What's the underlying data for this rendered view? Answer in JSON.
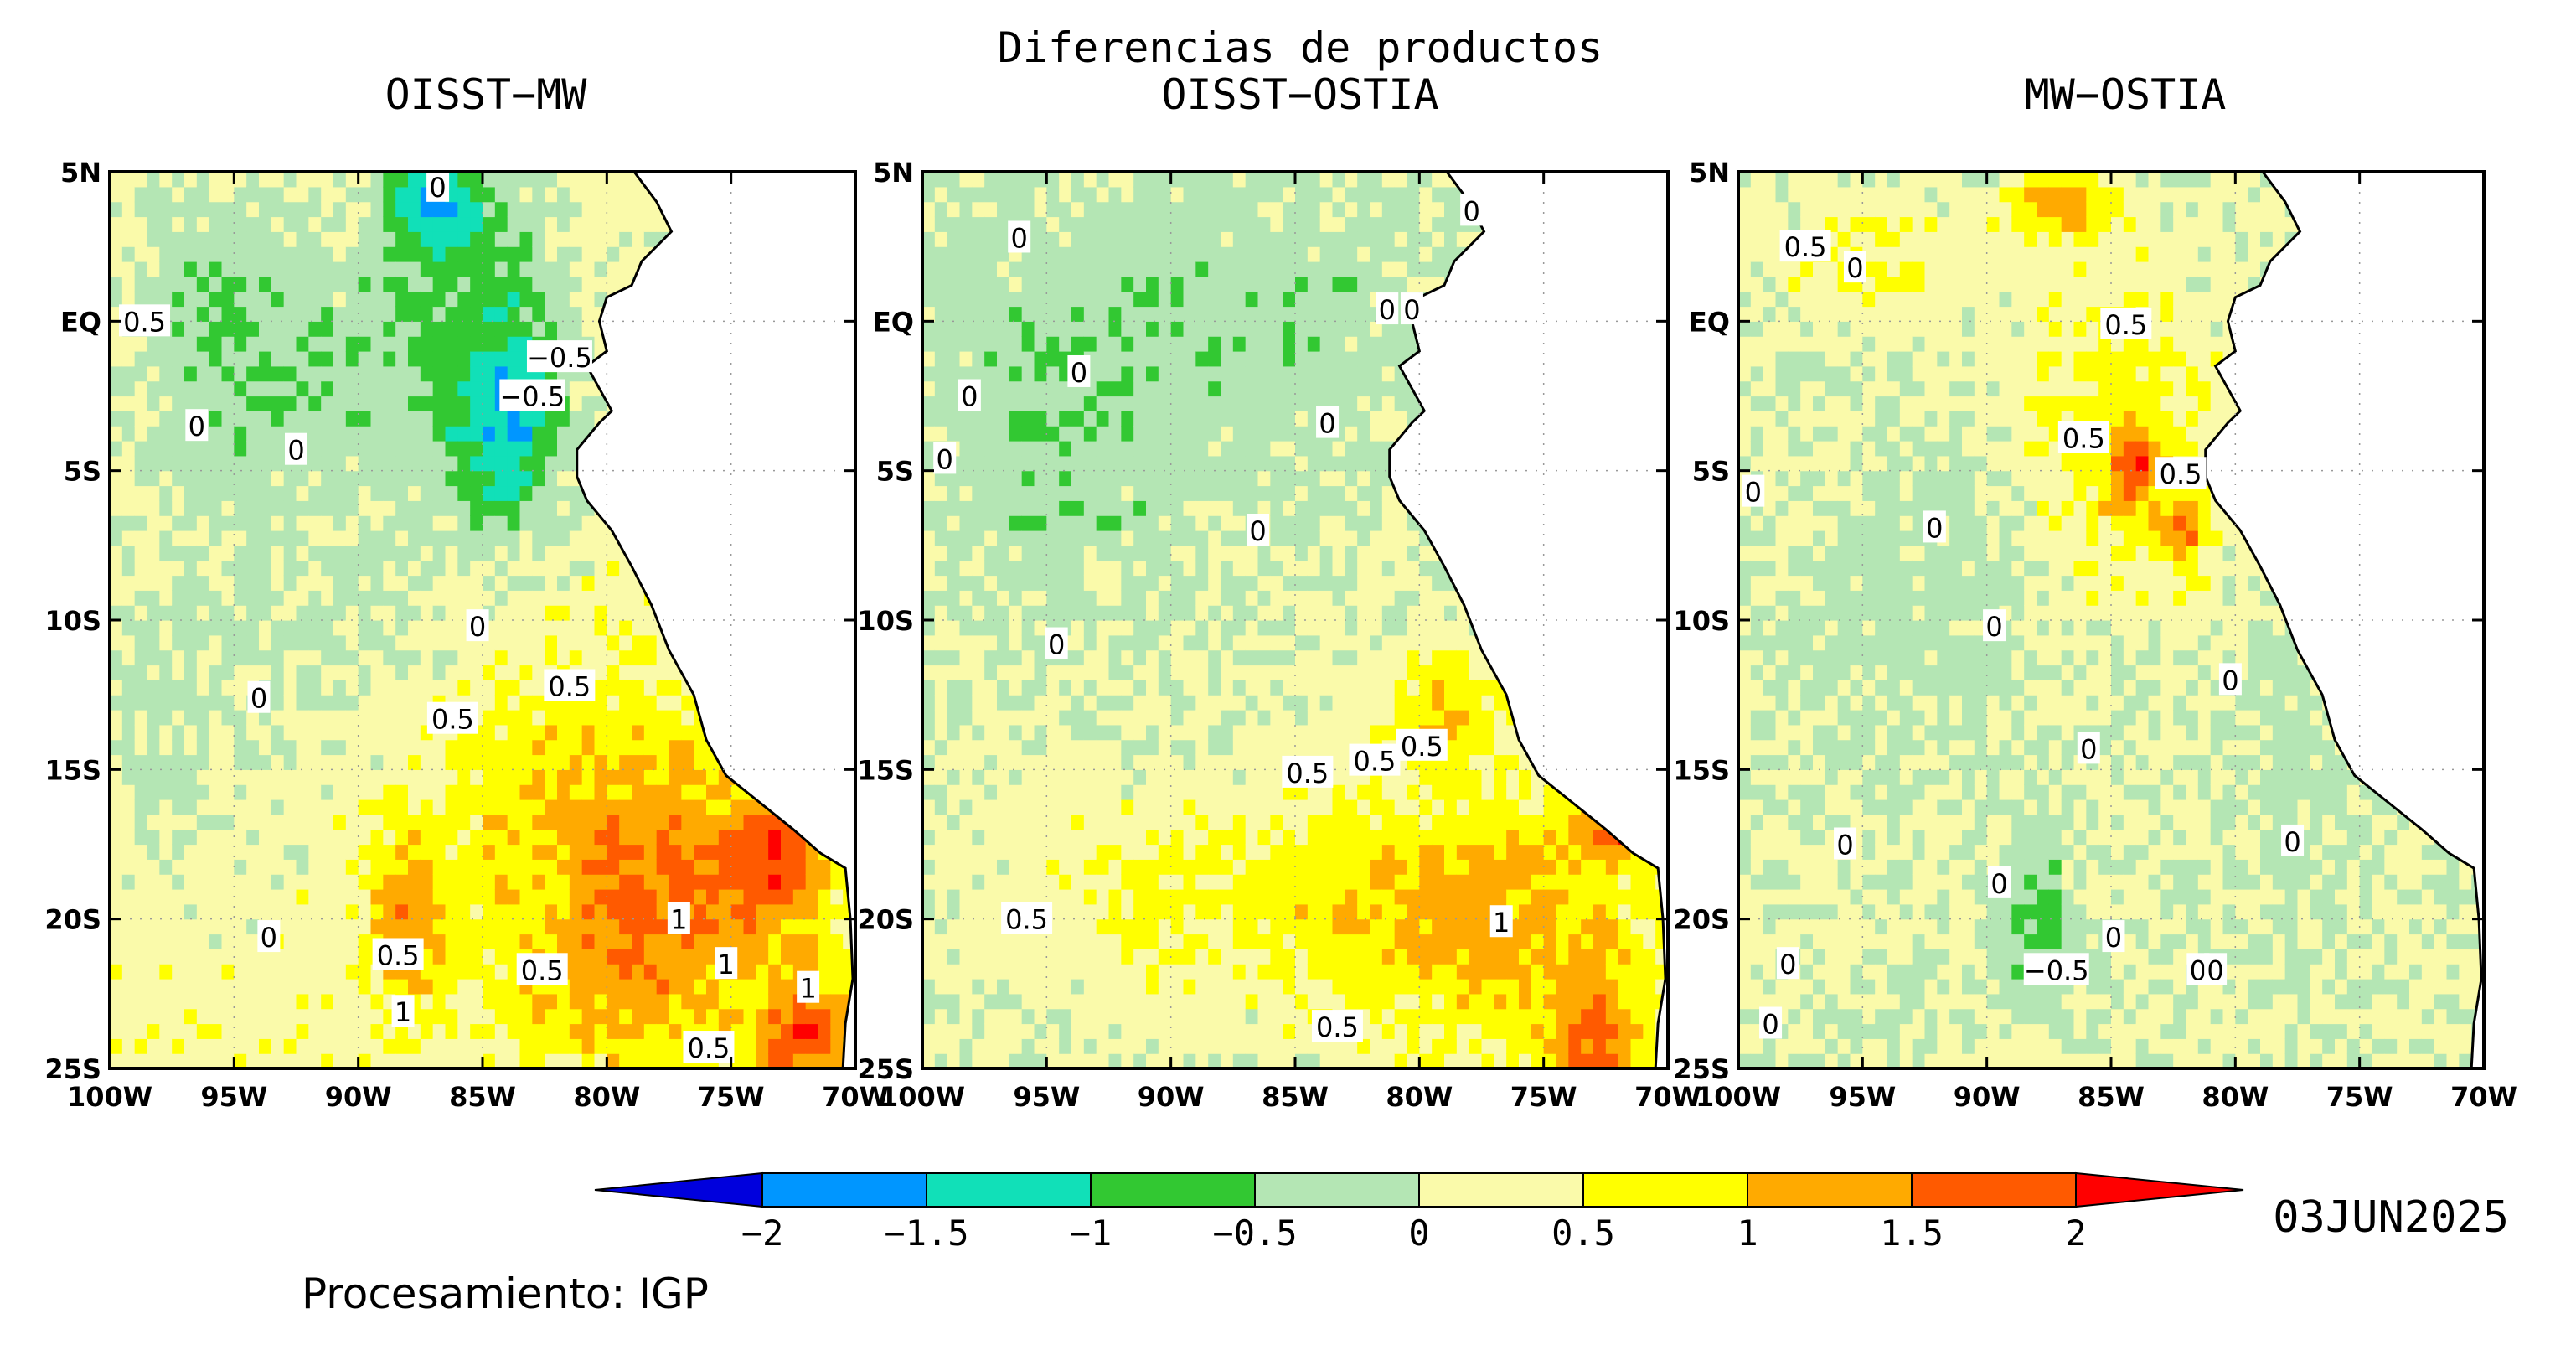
{
  "title": "Diferencias de productos",
  "panels": [
    {
      "title": "OISST−MW",
      "contour_labels": [
        {
          "value": "0",
          "lon": -86.8,
          "lat": 4.5
        },
        {
          "value": "0.5",
          "lon": -98.6,
          "lat": 0.0
        },
        {
          "value": "−0.5",
          "lon": -81.9,
          "lat": -1.2
        },
        {
          "value": "−0.5",
          "lon": -83.0,
          "lat": -2.5
        },
        {
          "value": "0",
          "lon": -96.5,
          "lat": -3.5
        },
        {
          "value": "0",
          "lon": -92.5,
          "lat": -4.3
        },
        {
          "value": "0",
          "lon": -85.2,
          "lat": -10.2
        },
        {
          "value": "0",
          "lon": -94.0,
          "lat": -12.6
        },
        {
          "value": "0.5",
          "lon": -81.5,
          "lat": -12.2
        },
        {
          "value": "0.5",
          "lon": -86.2,
          "lat": -13.3
        },
        {
          "value": "0",
          "lon": -93.6,
          "lat": -20.6
        },
        {
          "value": "0.5",
          "lon": -88.4,
          "lat": -21.2
        },
        {
          "value": "0.5",
          "lon": -82.6,
          "lat": -21.7
        },
        {
          "value": "1",
          "lon": -77.1,
          "lat": -20.0
        },
        {
          "value": "1",
          "lon": -75.2,
          "lat": -21.5
        },
        {
          "value": "1",
          "lon": -71.9,
          "lat": -22.3
        },
        {
          "value": "1",
          "lon": -88.2,
          "lat": -23.1
        },
        {
          "value": "0.5",
          "lon": -75.9,
          "lat": -24.3
        }
      ],
      "field": {
        "base": 0.3,
        "blobs": [
          {
            "lon": -92,
            "lat": -8,
            "rx": 8,
            "ry": 9,
            "amp": -0.4
          },
          {
            "lon": -85,
            "lat": 0,
            "rx": 4,
            "ry": 5,
            "amp": -1.0
          },
          {
            "lon": -87,
            "lat": 4,
            "rx": 2,
            "ry": 1.5,
            "amp": -1.5
          },
          {
            "lon": -84,
            "lat": -4,
            "rx": 2,
            "ry": 3,
            "amp": -1.2
          },
          {
            "lon": -95,
            "lat": 0,
            "rx": 5,
            "ry": 5,
            "amp": -0.6
          },
          {
            "lon": -98,
            "lat": -14,
            "rx": 3,
            "ry": 4,
            "amp": -0.3
          },
          {
            "lon": -82,
            "lat": -16,
            "rx": 6,
            "ry": 5,
            "amp": 0.6
          },
          {
            "lon": -77,
            "lat": -19,
            "rx": 5,
            "ry": 4,
            "amp": 1.0
          },
          {
            "lon": -73,
            "lat": -18,
            "rx": 2,
            "ry": 2,
            "amp": 1.2
          },
          {
            "lon": -88,
            "lat": -20,
            "rx": 1.5,
            "ry": 3,
            "amp": 1.0
          },
          {
            "lon": -72,
            "lat": -24,
            "rx": 2,
            "ry": 2,
            "amp": 1.5
          },
          {
            "lon": -80,
            "lat": -23,
            "rx": 5,
            "ry": 3,
            "amp": 0.5
          }
        ]
      }
    },
    {
      "title": "OISST−OSTIA",
      "contour_labels": [
        {
          "value": "0",
          "lon": -77.9,
          "lat": 3.7
        },
        {
          "value": "0",
          "lon": -96.1,
          "lat": 2.8
        },
        {
          "value": "0",
          "lon": -80.3,
          "lat": 0.4
        },
        {
          "value": "0",
          "lon": -81.3,
          "lat": 0.4
        },
        {
          "value": "0",
          "lon": -98.1,
          "lat": -2.5
        },
        {
          "value": "0",
          "lon": -93.7,
          "lat": -1.7
        },
        {
          "value": "0",
          "lon": -83.7,
          "lat": -3.4
        },
        {
          "value": "0",
          "lon": -99.1,
          "lat": -4.6
        },
        {
          "value": "0",
          "lon": -86.5,
          "lat": -7.0
        },
        {
          "value": "0",
          "lon": -94.6,
          "lat": -10.8
        },
        {
          "value": "0.5",
          "lon": -84.5,
          "lat": -15.1
        },
        {
          "value": "0.5",
          "lon": -81.8,
          "lat": -14.7
        },
        {
          "value": "0.5",
          "lon": -79.9,
          "lat": -14.2
        },
        {
          "value": "0.5",
          "lon": -95.8,
          "lat": -20.0
        },
        {
          "value": "1",
          "lon": -76.7,
          "lat": -20.1
        },
        {
          "value": "0.5",
          "lon": -83.3,
          "lat": -23.6
        }
      ],
      "field": {
        "base": 0.1,
        "blobs": [
          {
            "lon": -88,
            "lat": 0,
            "rx": 14,
            "ry": 6,
            "amp": -0.4
          },
          {
            "lon": -95,
            "lat": -6,
            "rx": 6,
            "ry": 6,
            "amp": -0.3
          },
          {
            "lon": -77,
            "lat": -20,
            "rx": 7,
            "ry": 4,
            "amp": 1.1
          },
          {
            "lon": -88,
            "lat": -19,
            "rx": 8,
            "ry": 3,
            "amp": 0.5
          },
          {
            "lon": -79,
            "lat": -13,
            "rx": 2,
            "ry": 2,
            "amp": 1.0
          },
          {
            "lon": -73,
            "lat": -24,
            "rx": 2,
            "ry": 2,
            "amp": 1.4
          },
          {
            "lon": -72,
            "lat": -17,
            "rx": 1.5,
            "ry": 1,
            "amp": 1.4
          }
        ]
      }
    },
    {
      "title": "MW−OSTIA",
      "contour_labels": [
        {
          "value": "0.5",
          "lon": -97.3,
          "lat": 2.5
        },
        {
          "value": "0",
          "lon": -95.3,
          "lat": 1.8
        },
        {
          "value": "0.5",
          "lon": -84.4,
          "lat": -0.1
        },
        {
          "value": "0.5",
          "lon": -86.1,
          "lat": -3.9
        },
        {
          "value": "0.5",
          "lon": -82.2,
          "lat": -5.1
        },
        {
          "value": "0",
          "lon": -99.4,
          "lat": -5.7
        },
        {
          "value": "0",
          "lon": -92.1,
          "lat": -6.9
        },
        {
          "value": "0",
          "lon": -89.7,
          "lat": -10.2
        },
        {
          "value": "0",
          "lon": -80.2,
          "lat": -12.0
        },
        {
          "value": "0",
          "lon": -85.9,
          "lat": -14.3
        },
        {
          "value": "0",
          "lon": -95.7,
          "lat": -17.5
        },
        {
          "value": "0",
          "lon": -77.7,
          "lat": -17.4
        },
        {
          "value": "0",
          "lon": -89.5,
          "lat": -18.8
        },
        {
          "value": "0",
          "lon": -84.9,
          "lat": -20.6
        },
        {
          "value": "−0.5",
          "lon": -87.2,
          "lat": -21.7
        },
        {
          "value": "0",
          "lon": -98.0,
          "lat": -21.5
        },
        {
          "value": "0",
          "lon": -81.5,
          "lat": -21.7
        },
        {
          "value": "0",
          "lon": -80.8,
          "lat": -21.7
        },
        {
          "value": "0",
          "lon": -98.7,
          "lat": -23.5
        }
      ],
      "field": {
        "base": 0.05,
        "blobs": [
          {
            "lon": -85,
            "lat": -4,
            "rx": 4,
            "ry": 6,
            "amp": 0.7
          },
          {
            "lon": -87,
            "lat": 4,
            "rx": 2,
            "ry": 1,
            "amp": 1.3
          },
          {
            "lon": -84,
            "lat": -5,
            "rx": 1,
            "ry": 1.5,
            "amp": 1.3
          },
          {
            "lon": -82,
            "lat": -7,
            "rx": 0.8,
            "ry": 1.2,
            "amp": 1.2
          },
          {
            "lon": -95,
            "lat": 2,
            "rx": 4,
            "ry": 2,
            "amp": 0.5
          },
          {
            "lon": -88,
            "lat": -20,
            "rx": 1.5,
            "ry": 3,
            "amp": -0.6
          },
          {
            "lon": -92,
            "lat": -9,
            "rx": 6,
            "ry": 5,
            "amp": -0.3
          },
          {
            "lon": -78,
            "lat": -14,
            "rx": 3,
            "ry": 4,
            "amp": -0.3
          }
        ]
      }
    }
  ],
  "map": {
    "lon_range": [
      -100,
      -70
    ],
    "lat_range": [
      -25,
      5
    ],
    "lon_ticks": [
      "100W",
      "95W",
      "90W",
      "85W",
      "80W",
      "75W",
      "70W"
    ],
    "lat_ticks": [
      "5N",
      "EQ",
      "5S",
      "10S",
      "15S",
      "20S",
      "25S"
    ],
    "grid": "dotted"
  },
  "colorbar": {
    "levels": [
      "−2",
      "−1.5",
      "−1",
      "−0.5",
      "0",
      "0.5",
      "1",
      "1.5",
      "2"
    ],
    "colors": [
      "#0000dd",
      "#0096ff",
      "#11e0b8",
      "#32c832",
      "#b4e6b4",
      "#fafaaa",
      "#ffff00",
      "#ffaa00",
      "#ff5a00",
      "#ff0000"
    ]
  },
  "date": "03JUN2025",
  "credit": "Procesamiento: IGP"
}
